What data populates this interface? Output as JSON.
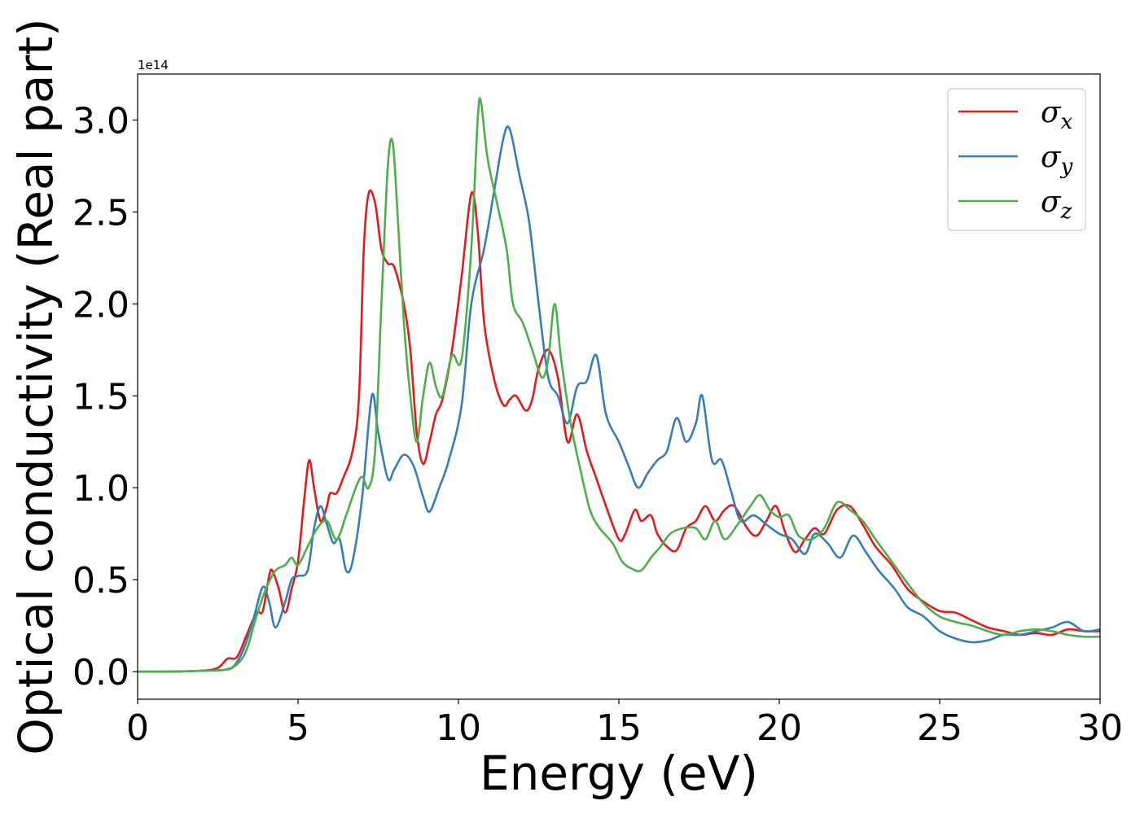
{
  "chart_data": {
    "type": "line",
    "title": "",
    "xlabel": "Energy (eV)",
    "ylabel": "Optical conductivity (Real part)",
    "y_offset_label": "1e14",
    "xlim": [
      0,
      30
    ],
    "ylim": [
      -0.15,
      3.25
    ],
    "xticks": [
      0,
      5,
      10,
      15,
      20,
      25,
      30
    ],
    "xtick_labels": [
      "0",
      "5",
      "10",
      "15",
      "20",
      "25",
      "30"
    ],
    "yticks": [
      0.0,
      0.5,
      1.0,
      1.5,
      2.0,
      2.5,
      3.0
    ],
    "ytick_labels": [
      "0.0",
      "0.5",
      "1.0",
      "1.5",
      "2.0",
      "2.5",
      "3.0"
    ],
    "grid": false,
    "legend_position": "top-right",
    "series": [
      {
        "name": "σx",
        "legend_base": "σ",
        "legend_sub": "x",
        "color": "#e41a1c",
        "points": [
          [
            0,
            0
          ],
          [
            1,
            0
          ],
          [
            2,
            0.005
          ],
          [
            2.5,
            0.02
          ],
          [
            2.8,
            0.07
          ],
          [
            3.1,
            0.08
          ],
          [
            3.4,
            0.2
          ],
          [
            3.7,
            0.32
          ],
          [
            3.9,
            0.33
          ],
          [
            4.1,
            0.52
          ],
          [
            4.2,
            0.55
          ],
          [
            4.4,
            0.45
          ],
          [
            4.6,
            0.32
          ],
          [
            4.8,
            0.45
          ],
          [
            5.0,
            0.6
          ],
          [
            5.2,
            0.95
          ],
          [
            5.35,
            1.15
          ],
          [
            5.5,
            1.0
          ],
          [
            5.7,
            0.82
          ],
          [
            5.9,
            0.9
          ],
          [
            6.0,
            0.97
          ],
          [
            6.2,
            0.97
          ],
          [
            6.4,
            1.05
          ],
          [
            6.7,
            1.2
          ],
          [
            6.9,
            1.5
          ],
          [
            7.05,
            2.3
          ],
          [
            7.2,
            2.6
          ],
          [
            7.4,
            2.55
          ],
          [
            7.6,
            2.3
          ],
          [
            7.8,
            2.22
          ],
          [
            8.0,
            2.2
          ],
          [
            8.3,
            2.0
          ],
          [
            8.5,
            1.75
          ],
          [
            8.7,
            1.3
          ],
          [
            8.9,
            1.13
          ],
          [
            9.1,
            1.25
          ],
          [
            9.3,
            1.4
          ],
          [
            9.5,
            1.48
          ],
          [
            9.8,
            1.75
          ],
          [
            10.1,
            2.15
          ],
          [
            10.4,
            2.6
          ],
          [
            10.6,
            2.4
          ],
          [
            10.8,
            1.9
          ],
          [
            11.1,
            1.6
          ],
          [
            11.4,
            1.45
          ],
          [
            11.6,
            1.48
          ],
          [
            11.8,
            1.5
          ],
          [
            12.1,
            1.42
          ],
          [
            12.3,
            1.48
          ],
          [
            12.5,
            1.65
          ],
          [
            12.8,
            1.75
          ],
          [
            13.1,
            1.6
          ],
          [
            13.4,
            1.25
          ],
          [
            13.7,
            1.4
          ],
          [
            14.0,
            1.2
          ],
          [
            14.3,
            1.05
          ],
          [
            14.6,
            0.9
          ],
          [
            15.0,
            0.72
          ],
          [
            15.2,
            0.75
          ],
          [
            15.5,
            0.88
          ],
          [
            15.7,
            0.82
          ],
          [
            16.0,
            0.85
          ],
          [
            16.2,
            0.75
          ],
          [
            16.5,
            0.68
          ],
          [
            16.8,
            0.66
          ],
          [
            17.1,
            0.78
          ],
          [
            17.4,
            0.82
          ],
          [
            17.7,
            0.9
          ],
          [
            18.0,
            0.82
          ],
          [
            18.3,
            0.88
          ],
          [
            18.6,
            0.9
          ],
          [
            19.0,
            0.78
          ],
          [
            19.3,
            0.74
          ],
          [
            19.6,
            0.82
          ],
          [
            19.9,
            0.9
          ],
          [
            20.2,
            0.75
          ],
          [
            20.5,
            0.65
          ],
          [
            20.8,
            0.72
          ],
          [
            21.1,
            0.78
          ],
          [
            21.4,
            0.75
          ],
          [
            21.8,
            0.88
          ],
          [
            22.2,
            0.9
          ],
          [
            22.6,
            0.8
          ],
          [
            23.0,
            0.68
          ],
          [
            23.5,
            0.58
          ],
          [
            24.0,
            0.45
          ],
          [
            24.5,
            0.38
          ],
          [
            25.0,
            0.33
          ],
          [
            25.5,
            0.32
          ],
          [
            26.0,
            0.28
          ],
          [
            26.5,
            0.24
          ],
          [
            27.0,
            0.22
          ],
          [
            27.5,
            0.2
          ],
          [
            28.0,
            0.21
          ],
          [
            28.5,
            0.2
          ],
          [
            29.0,
            0.23
          ],
          [
            29.5,
            0.22
          ],
          [
            30,
            0.22
          ]
        ]
      },
      {
        "name": "σy",
        "legend_base": "σ",
        "legend_sub": "y",
        "color": "#377eb8",
        "points": [
          [
            0,
            0
          ],
          [
            1,
            0
          ],
          [
            2,
            0.005
          ],
          [
            2.7,
            0.01
          ],
          [
            3.0,
            0.03
          ],
          [
            3.3,
            0.12
          ],
          [
            3.6,
            0.28
          ],
          [
            3.9,
            0.46
          ],
          [
            4.1,
            0.38
          ],
          [
            4.3,
            0.24
          ],
          [
            4.6,
            0.38
          ],
          [
            4.8,
            0.5
          ],
          [
            5.0,
            0.52
          ],
          [
            5.3,
            0.55
          ],
          [
            5.5,
            0.78
          ],
          [
            5.7,
            0.9
          ],
          [
            5.9,
            0.8
          ],
          [
            6.1,
            0.7
          ],
          [
            6.3,
            0.72
          ],
          [
            6.5,
            0.55
          ],
          [
            6.7,
            0.6
          ],
          [
            7.0,
            0.95
          ],
          [
            7.3,
            1.5
          ],
          [
            7.5,
            1.3
          ],
          [
            7.8,
            1.05
          ],
          [
            8.0,
            1.1
          ],
          [
            8.3,
            1.18
          ],
          [
            8.6,
            1.12
          ],
          [
            8.9,
            0.95
          ],
          [
            9.1,
            0.87
          ],
          [
            9.4,
            1.0
          ],
          [
            9.7,
            1.15
          ],
          [
            10.1,
            1.45
          ],
          [
            10.4,
            2.0
          ],
          [
            10.8,
            2.3
          ],
          [
            11.1,
            2.6
          ],
          [
            11.4,
            2.9
          ],
          [
            11.6,
            2.95
          ],
          [
            11.9,
            2.7
          ],
          [
            12.2,
            2.45
          ],
          [
            12.5,
            2.0
          ],
          [
            12.8,
            1.6
          ],
          [
            13.1,
            1.5
          ],
          [
            13.4,
            1.35
          ],
          [
            13.7,
            1.55
          ],
          [
            14.0,
            1.58
          ],
          [
            14.3,
            1.72
          ],
          [
            14.6,
            1.4
          ],
          [
            15.0,
            1.25
          ],
          [
            15.3,
            1.12
          ],
          [
            15.6,
            1.0
          ],
          [
            15.9,
            1.08
          ],
          [
            16.2,
            1.15
          ],
          [
            16.5,
            1.2
          ],
          [
            16.8,
            1.38
          ],
          [
            17.1,
            1.25
          ],
          [
            17.4,
            1.35
          ],
          [
            17.6,
            1.5
          ],
          [
            17.9,
            1.15
          ],
          [
            18.2,
            1.15
          ],
          [
            18.5,
            0.98
          ],
          [
            18.8,
            0.82
          ],
          [
            19.2,
            0.85
          ],
          [
            19.6,
            0.8
          ],
          [
            20.0,
            0.75
          ],
          [
            20.4,
            0.72
          ],
          [
            20.8,
            0.64
          ],
          [
            21.1,
            0.75
          ],
          [
            21.5,
            0.7
          ],
          [
            21.9,
            0.62
          ],
          [
            22.3,
            0.74
          ],
          [
            22.7,
            0.65
          ],
          [
            23.1,
            0.55
          ],
          [
            23.6,
            0.45
          ],
          [
            24.0,
            0.35
          ],
          [
            24.5,
            0.3
          ],
          [
            25.0,
            0.22
          ],
          [
            25.5,
            0.18
          ],
          [
            26.0,
            0.16
          ],
          [
            26.5,
            0.17
          ],
          [
            27.0,
            0.2
          ],
          [
            27.5,
            0.2
          ],
          [
            28.0,
            0.22
          ],
          [
            28.5,
            0.24
          ],
          [
            29.0,
            0.27
          ],
          [
            29.5,
            0.22
          ],
          [
            30,
            0.23
          ]
        ]
      },
      {
        "name": "σz",
        "legend_base": "σ",
        "legend_sub": "z",
        "color": "#4daf4a",
        "points": [
          [
            0,
            0
          ],
          [
            1,
            0
          ],
          [
            2,
            0.005
          ],
          [
            2.7,
            0.01
          ],
          [
            3.1,
            0.04
          ],
          [
            3.4,
            0.12
          ],
          [
            3.7,
            0.3
          ],
          [
            4.0,
            0.45
          ],
          [
            4.3,
            0.55
          ],
          [
            4.6,
            0.58
          ],
          [
            4.8,
            0.62
          ],
          [
            5.0,
            0.58
          ],
          [
            5.3,
            0.68
          ],
          [
            5.6,
            0.78
          ],
          [
            5.9,
            0.82
          ],
          [
            6.2,
            0.72
          ],
          [
            6.5,
            0.85
          ],
          [
            6.8,
            1.0
          ],
          [
            7.0,
            1.06
          ],
          [
            7.2,
            1.0
          ],
          [
            7.4,
            1.2
          ],
          [
            7.6,
            2.0
          ],
          [
            7.8,
            2.75
          ],
          [
            7.95,
            2.88
          ],
          [
            8.1,
            2.5
          ],
          [
            8.3,
            1.9
          ],
          [
            8.5,
            1.5
          ],
          [
            8.7,
            1.25
          ],
          [
            8.9,
            1.5
          ],
          [
            9.1,
            1.68
          ],
          [
            9.3,
            1.55
          ],
          [
            9.5,
            1.5
          ],
          [
            9.8,
            1.72
          ],
          [
            10.1,
            1.7
          ],
          [
            10.4,
            2.3
          ],
          [
            10.6,
            3.0
          ],
          [
            10.7,
            3.1
          ],
          [
            10.9,
            2.8
          ],
          [
            11.2,
            2.55
          ],
          [
            11.5,
            2.3
          ],
          [
            11.7,
            2.0
          ],
          [
            12.0,
            1.9
          ],
          [
            12.3,
            1.75
          ],
          [
            12.6,
            1.6
          ],
          [
            12.8,
            1.7
          ],
          [
            13.0,
            2.0
          ],
          [
            13.2,
            1.7
          ],
          [
            13.5,
            1.35
          ],
          [
            13.8,
            1.1
          ],
          [
            14.1,
            0.88
          ],
          [
            14.4,
            0.78
          ],
          [
            14.8,
            0.7
          ],
          [
            15.1,
            0.6
          ],
          [
            15.4,
            0.56
          ],
          [
            15.7,
            0.55
          ],
          [
            16.0,
            0.62
          ],
          [
            16.3,
            0.68
          ],
          [
            16.6,
            0.75
          ],
          [
            17.0,
            0.78
          ],
          [
            17.4,
            0.78
          ],
          [
            17.7,
            0.72
          ],
          [
            18.0,
            0.82
          ],
          [
            18.3,
            0.72
          ],
          [
            18.7,
            0.8
          ],
          [
            19.1,
            0.9
          ],
          [
            19.4,
            0.96
          ],
          [
            19.7,
            0.88
          ],
          [
            20.0,
            0.84
          ],
          [
            20.3,
            0.85
          ],
          [
            20.6,
            0.74
          ],
          [
            21.0,
            0.72
          ],
          [
            21.4,
            0.78
          ],
          [
            21.8,
            0.92
          ],
          [
            22.2,
            0.88
          ],
          [
            22.6,
            0.82
          ],
          [
            23.0,
            0.72
          ],
          [
            23.5,
            0.6
          ],
          [
            24.0,
            0.48
          ],
          [
            24.5,
            0.37
          ],
          [
            25.0,
            0.3
          ],
          [
            25.5,
            0.27
          ],
          [
            26.0,
            0.25
          ],
          [
            26.5,
            0.22
          ],
          [
            27.0,
            0.2
          ],
          [
            27.5,
            0.22
          ],
          [
            28.0,
            0.23
          ],
          [
            28.5,
            0.22
          ],
          [
            29.0,
            0.2
          ],
          [
            29.5,
            0.19
          ],
          [
            30,
            0.19
          ]
        ]
      }
    ]
  }
}
